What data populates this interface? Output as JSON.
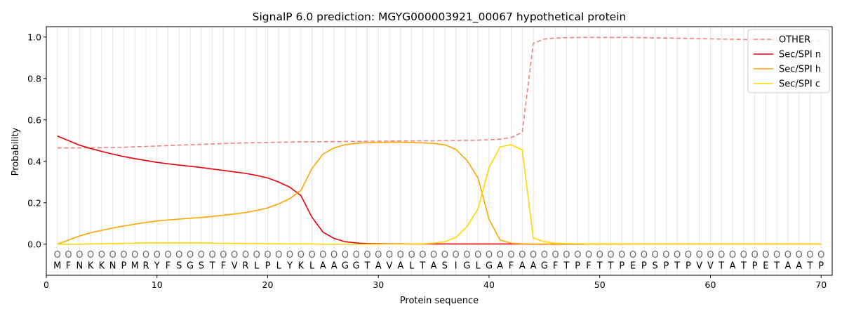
{
  "chart_data": {
    "type": "line",
    "title": "SignalP 6.0 prediction: MGYG000003921_00067 hypothetical protein",
    "xlabel": "Protein sequence",
    "ylabel": "Probability",
    "xlim": [
      0,
      71
    ],
    "ylim": [
      -0.15,
      1.05
    ],
    "x_ticks": [
      0,
      10,
      20,
      30,
      40,
      50,
      60,
      70
    ],
    "y_ticks": [
      0.0,
      0.2,
      0.4,
      0.6,
      0.8,
      1.0
    ],
    "x_tick_labels": [
      "0",
      "10",
      "20",
      "30",
      "40",
      "50",
      "60",
      "70"
    ],
    "y_tick_labels": [
      "0.0",
      "0.2",
      "0.4",
      "0.6",
      "0.8",
      "1.0"
    ],
    "legend_position": "top-right",
    "sequence": [
      "M",
      "F",
      "N",
      "K",
      "K",
      "N",
      "P",
      "M",
      "R",
      "Y",
      "F",
      "S",
      "G",
      "S",
      "T",
      "F",
      "V",
      "R",
      "L",
      "P",
      "L",
      "Y",
      "K",
      "L",
      "A",
      "A",
      "G",
      "G",
      "T",
      "A",
      "V",
      "A",
      "L",
      "T",
      "A",
      "S",
      "I",
      "G",
      "L",
      "G",
      "A",
      "F",
      "A",
      "A",
      "G",
      "F",
      "T",
      "P",
      "F",
      "T",
      "T",
      "P",
      "E",
      "P",
      "S",
      "P",
      "T",
      "P",
      "V",
      "V",
      "T",
      "A",
      "T",
      "P",
      "E",
      "T",
      "A",
      "A",
      "T",
      "P"
    ],
    "position_marker": "O",
    "series": [
      {
        "name": "OTHER",
        "color": "#f08080",
        "dashed": true,
        "values": [
          0.465,
          0.465,
          0.465,
          0.465,
          0.466,
          0.467,
          0.468,
          0.47,
          0.472,
          0.474,
          0.476,
          0.478,
          0.48,
          0.482,
          0.484,
          0.486,
          0.488,
          0.489,
          0.49,
          0.491,
          0.492,
          0.493,
          0.494,
          0.494,
          0.495,
          0.495,
          0.496,
          0.496,
          0.497,
          0.497,
          0.498,
          0.498,
          0.498,
          0.499,
          0.499,
          0.5,
          0.5,
          0.501,
          0.502,
          0.504,
          0.507,
          0.515,
          0.54,
          0.97,
          0.99,
          0.995,
          0.997,
          0.998,
          0.998,
          0.998,
          0.998,
          0.998,
          0.998,
          0.997,
          0.996,
          0.995,
          0.994,
          0.993,
          0.992,
          0.991,
          0.99,
          0.989,
          0.988,
          0.987,
          0.986,
          0.985,
          0.984,
          0.983,
          0.982,
          0.98
        ]
      },
      {
        "name": "Sec/SPI n",
        "color": "#e8000b",
        "dashed": false,
        "values": [
          0.522,
          0.5,
          0.478,
          0.462,
          0.448,
          0.435,
          0.423,
          0.413,
          0.404,
          0.395,
          0.388,
          0.382,
          0.376,
          0.37,
          0.363,
          0.356,
          0.349,
          0.342,
          0.332,
          0.32,
          0.3,
          0.275,
          0.235,
          0.13,
          0.058,
          0.028,
          0.012,
          0.006,
          0.003,
          0.002,
          0.001,
          0.001,
          0.001,
          0.001,
          0.001,
          0.001,
          0.001,
          0.001,
          0.001,
          0.001,
          0.001,
          0.001,
          0.001,
          0.0,
          0.0,
          0.0,
          0.0,
          0.0,
          0.0,
          0.0,
          0.0,
          0.0,
          0.0,
          0.0,
          0.0,
          0.0,
          0.0,
          0.0,
          0.0,
          0.0,
          0.0,
          0.0,
          0.0,
          0.0,
          0.0,
          0.0,
          0.0,
          0.0,
          0.0,
          0.0
        ]
      },
      {
        "name": "Sec/SPI h",
        "color": "#ffa500",
        "dashed": false,
        "values": [
          0.0,
          0.02,
          0.04,
          0.055,
          0.067,
          0.078,
          0.088,
          0.097,
          0.105,
          0.112,
          0.117,
          0.121,
          0.125,
          0.129,
          0.134,
          0.14,
          0.146,
          0.153,
          0.163,
          0.175,
          0.195,
          0.22,
          0.26,
          0.365,
          0.435,
          0.465,
          0.48,
          0.487,
          0.49,
          0.491,
          0.492,
          0.492,
          0.491,
          0.489,
          0.486,
          0.48,
          0.458,
          0.405,
          0.32,
          0.12,
          0.02,
          0.005,
          0.002,
          0.001,
          0.001,
          0.001,
          0.001,
          0.001,
          0.001,
          0.001,
          0.001,
          0.001,
          0.001,
          0.001,
          0.001,
          0.001,
          0.001,
          0.001,
          0.001,
          0.001,
          0.001,
          0.001,
          0.001,
          0.001,
          0.001,
          0.001,
          0.001,
          0.001,
          0.001,
          0.001
        ]
      },
      {
        "name": "Sec/SPI c",
        "color": "#ffd700",
        "dashed": false,
        "values": [
          0.0,
          0.0,
          0.0,
          0.001,
          0.002,
          0.003,
          0.004,
          0.005,
          0.006,
          0.006,
          0.006,
          0.006,
          0.006,
          0.006,
          0.005,
          0.004,
          0.004,
          0.003,
          0.003,
          0.002,
          0.002,
          0.001,
          0.001,
          0.001,
          0.0,
          0.0,
          0.0,
          0.0,
          0.0,
          0.0,
          0.0,
          0.0,
          0.001,
          0.002,
          0.005,
          0.012,
          0.032,
          0.085,
          0.17,
          0.37,
          0.47,
          0.48,
          0.455,
          0.03,
          0.012,
          0.005,
          0.003,
          0.002,
          0.001,
          0.001,
          0.001,
          0.001,
          0.0,
          0.0,
          0.0,
          0.0,
          0.0,
          0.0,
          0.0,
          0.0,
          0.0,
          0.0,
          0.0,
          0.0,
          0.0,
          0.0,
          0.0,
          0.0,
          0.0,
          0.0
        ]
      }
    ]
  }
}
